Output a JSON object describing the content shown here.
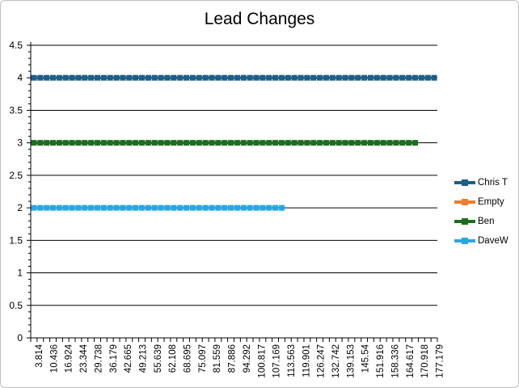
{
  "chart_data": {
    "type": "line",
    "title": "Lead Changes",
    "xlabel": "",
    "ylabel": "",
    "ylim": [
      0,
      4.5
    ],
    "y_ticks": [
      "0",
      "0.5",
      "1",
      "1.5",
      "2",
      "2.5",
      "3",
      "3.5",
      "4",
      "4.5"
    ],
    "grid": true,
    "legend": "right",
    "x_categories_count": 64,
    "x_tick_labels": [
      "3.814",
      "10.436",
      "16.924",
      "23.344",
      "29.738",
      "36.179",
      "42.665",
      "49.213",
      "55.639",
      "62.108",
      "68.695",
      "75.097",
      "81.559",
      "87.886",
      "94.292",
      "100.817",
      "107.169",
      "113.563",
      "119.901",
      "126.247",
      "132.742",
      "139.153",
      "145.54",
      "151.916",
      "158.336",
      "164.617",
      "170.918",
      "177.179"
    ],
    "series": [
      {
        "name": "Chris T",
        "color": "#1e5f85",
        "value": 4,
        "count": 64
      },
      {
        "name": "Empty",
        "color": "#ed7d31",
        "value": null,
        "count": 0
      },
      {
        "name": "Ben",
        "color": "#1e6b22",
        "value": 3,
        "count": 61
      },
      {
        "name": "DaveW",
        "color": "#2aa6de",
        "value": 2,
        "count": 40
      }
    ]
  }
}
